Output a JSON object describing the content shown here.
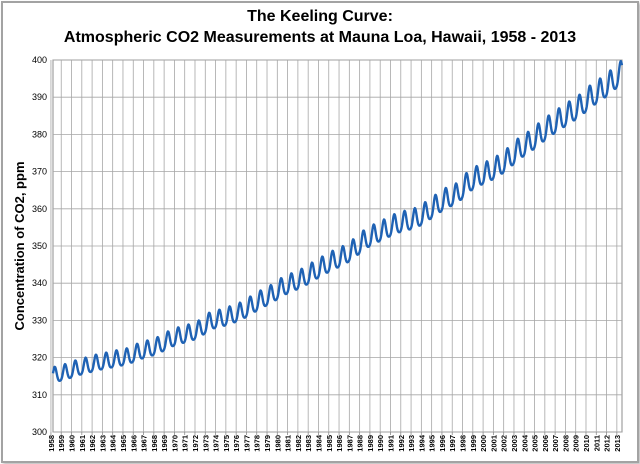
{
  "chart_data": {
    "type": "line",
    "title_line1": "The Keeling Curve:",
    "title_line2": "Atmospheric CO2 Measurements at Mauna Loa, Hawaii, 1958 - 2013",
    "xlabel": "",
    "ylabel": "Concentration of CO2, ppm",
    "ylim": [
      300,
      400
    ],
    "yticks": [
      "300",
      "310",
      "320",
      "330",
      "340",
      "350",
      "360",
      "370",
      "380",
      "390",
      "400"
    ],
    "xlim": [
      1958.2,
      2013.5
    ],
    "xticks": [
      "1958",
      "1959",
      "1960",
      "1961",
      "1962",
      "1963",
      "1964",
      "1965",
      "1966",
      "1967",
      "1968",
      "1969",
      "1970",
      "1971",
      "1972",
      "1973",
      "1974",
      "1975",
      "1976",
      "1977",
      "1978",
      "1979",
      "1980",
      "1981",
      "1982",
      "1983",
      "1984",
      "1985",
      "1986",
      "1987",
      "1988",
      "1989",
      "1990",
      "1991",
      "1992",
      "1993",
      "1994",
      "1995",
      "1996",
      "1997",
      "1998",
      "1999",
      "2000",
      "2001",
      "2002",
      "2003",
      "2004",
      "2005",
      "2006",
      "2007",
      "2008",
      "2009",
      "2010",
      "2011",
      "2012",
      "2013"
    ],
    "grid": true,
    "line_color": "#1f62b4",
    "series": [
      {
        "name": "",
        "annual_mean_x": [
          1958,
          1959,
          1960,
          1961,
          1962,
          1963,
          1964,
          1965,
          1966,
          1967,
          1968,
          1969,
          1970,
          1971,
          1972,
          1973,
          1974,
          1975,
          1976,
          1977,
          1978,
          1979,
          1980,
          1981,
          1982,
          1983,
          1984,
          1985,
          1986,
          1987,
          1988,
          1989,
          1990,
          1991,
          1992,
          1993,
          1994,
          1995,
          1996,
          1997,
          1998,
          1999,
          2000,
          2001,
          2002,
          2003,
          2004,
          2005,
          2006,
          2007,
          2008,
          2009,
          2010,
          2011,
          2012,
          2013
        ],
        "annual_mean_y": [
          315.2,
          315.9,
          316.9,
          317.6,
          318.4,
          318.9,
          319.5,
          320.0,
          321.3,
          322.1,
          323.0,
          324.6,
          325.6,
          326.3,
          327.4,
          329.6,
          330.2,
          331.1,
          332.1,
          333.8,
          335.4,
          336.8,
          338.7,
          339.9,
          341.1,
          342.8,
          344.4,
          345.9,
          347.1,
          349.0,
          351.4,
          352.9,
          354.2,
          355.6,
          356.4,
          357.1,
          358.8,
          360.8,
          362.6,
          363.7,
          366.7,
          368.4,
          369.6,
          371.1,
          373.2,
          375.8,
          377.5,
          379.8,
          381.9,
          383.8,
          385.6,
          387.4,
          389.9,
          391.7,
          393.9,
          396.4
        ],
        "seasonal_amplitude": [
          2.4,
          3.6
        ],
        "peak_month": 5,
        "trough_month": 10
      }
    ]
  }
}
